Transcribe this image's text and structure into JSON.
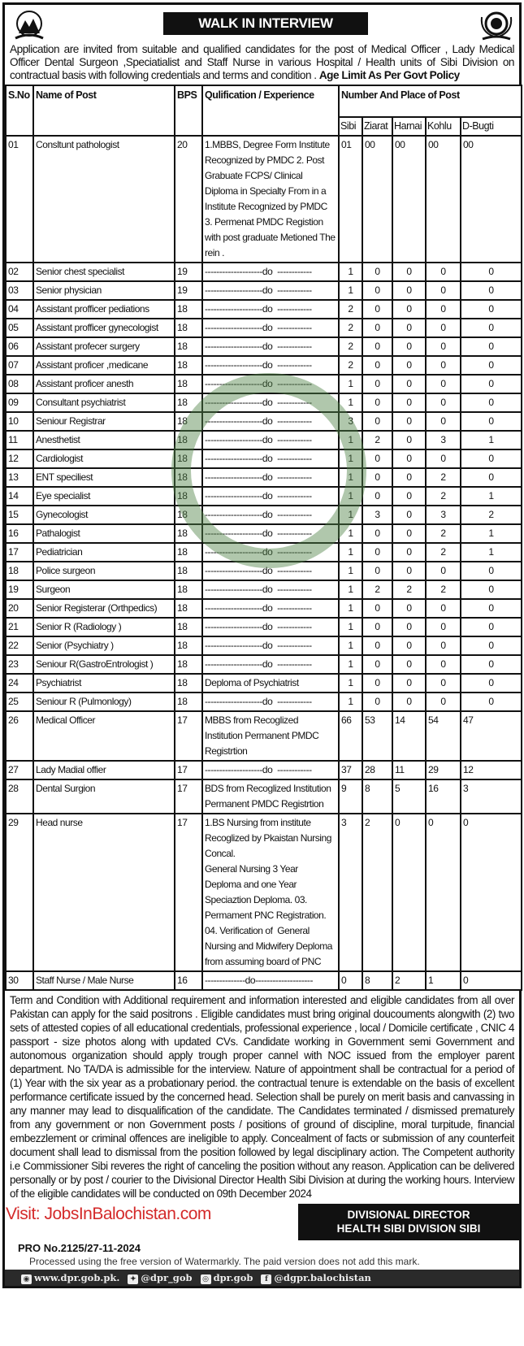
{
  "title": "WALK IN INTERVIEW",
  "intro": "Application are invited from suitable and qualified candidates for the post of Medical Officer , Lady Medical Officer Dental Surgeon ,Speciatialist  and Staff Nurse in various  Hospital / Health units of  Sibi Division on contractual basis with following credentials and terms and condition .",
  "intro_bold": "Age Limit As Per Govt Policy",
  "table": {
    "headers": {
      "sno": "S.No",
      "name": "Name of Post",
      "bps": "BPS",
      "qual": "Qulification / Experience",
      "place": "Number And Place of Post"
    },
    "places": [
      "Sibi",
      "Ziarat",
      "Harnai",
      "Kohlu",
      "D-Bugti"
    ],
    "rows": [
      {
        "sno": "01",
        "name": "Consltunt  pathologist",
        "bps": "20",
        "qual": "1.MBBS, Degree Form Institute  Recognized by PMDC 2. Post Grabuate FCPS/ Clinical Diploma in Specialty From in a Institute Recognized by PMDC 3. Permenat PMDC Registion with post graduate Metioned The rein .",
        "counts": [
          "01",
          "00",
          "00",
          "00",
          "00"
        ]
      },
      {
        "sno": "02",
        "name": "Senior chest specialist",
        "bps": "19",
        "qual": "--------------------do  ------------",
        "counts": [
          "1",
          "0",
          "0",
          "0",
          "0"
        ]
      },
      {
        "sno": "03",
        "name": "Senior  physician",
        "bps": "19",
        "qual": "--------------------do  ------------",
        "counts": [
          "1",
          "0",
          "0",
          "0",
          "0"
        ]
      },
      {
        "sno": "04",
        "name": "Assistant  profficer  pediations",
        "bps": "18",
        "qual": "--------------------do  ------------",
        "counts": [
          "2",
          "0",
          "0",
          "0",
          "0"
        ]
      },
      {
        "sno": "05",
        "name": "Assistant  profficer gynecologist",
        "bps": "18",
        "qual": "--------------------do  ------------",
        "counts": [
          "2",
          "0",
          "0",
          "0",
          "0"
        ]
      },
      {
        "sno": "06",
        "name": "Assistant  profecer   surgery",
        "bps": "18",
        "qual": "--------------------do  ------------",
        "counts": [
          "2",
          "0",
          "0",
          "0",
          "0"
        ]
      },
      {
        "sno": "07",
        "name": "Assistant  proficer  ,medicane",
        "bps": "18",
        "qual": "--------------------do  ------------",
        "counts": [
          "2",
          "0",
          "0",
          "0",
          "0"
        ]
      },
      {
        "sno": "08",
        "name": "Assistant  proficer anesth",
        "bps": "18",
        "qual": "--------------------do  ------------",
        "counts": [
          "1",
          "0",
          "0",
          "0",
          "0"
        ]
      },
      {
        "sno": "09",
        "name": "Consultant psychiatrist",
        "bps": "18",
        "qual": "--------------------do  ------------",
        "counts": [
          "1",
          "0",
          "0",
          "0",
          "0"
        ]
      },
      {
        "sno": "10",
        "name": "Seniour  Registrar",
        "bps": "18",
        "qual": "--------------------do  ------------",
        "counts": [
          "3",
          "0",
          "0",
          "0",
          "0"
        ]
      },
      {
        "sno": "11",
        "name": "Anesthetist",
        "bps": "18",
        "qual": "--------------------do  ------------",
        "counts": [
          "1",
          "2",
          "0",
          "3",
          "1"
        ]
      },
      {
        "sno": "12",
        "name": "Cardiologist",
        "bps": "18",
        "qual": "--------------------do  ------------",
        "counts": [
          "1",
          "0",
          "0",
          "0",
          "0"
        ]
      },
      {
        "sno": "13",
        "name": "ENT speciliest",
        "bps": "18",
        "qual": "--------------------do  ------------",
        "counts": [
          "1",
          "0",
          "0",
          "2",
          "0"
        ]
      },
      {
        "sno": "14",
        "name": "Eye specialist",
        "bps": "18",
        "qual": "--------------------do  ------------",
        "counts": [
          "1",
          "0",
          "0",
          "2",
          "1"
        ]
      },
      {
        "sno": "15",
        "name": "Gynecologist",
        "bps": "18",
        "qual": "--------------------do  ------------",
        "counts": [
          "1",
          "3",
          "0",
          "3",
          "2"
        ]
      },
      {
        "sno": "16",
        "name": "Pathalogist",
        "bps": "18",
        "qual": "--------------------do  ------------",
        "counts": [
          "1",
          "0",
          "0",
          "2",
          "1"
        ]
      },
      {
        "sno": "17",
        "name": "Pediatrician",
        "bps": "18",
        "qual": "--------------------do  ------------",
        "counts": [
          "1",
          "0",
          "0",
          "2",
          "1"
        ]
      },
      {
        "sno": "18",
        "name": "Police  surgeon",
        "bps": "18",
        "qual": "--------------------do  ------------",
        "counts": [
          "1",
          "0",
          "0",
          "0",
          "0"
        ]
      },
      {
        "sno": "19",
        "name": "Surgeon",
        "bps": "18",
        "qual": "--------------------do  ------------",
        "counts": [
          "1",
          "2",
          "2",
          "2",
          "0"
        ]
      },
      {
        "sno": "20",
        "name": "Senior  Registerar (Orthpedics)",
        "bps": "18",
        "qual": "--------------------do  ------------",
        "counts": [
          "1",
          "0",
          "0",
          "0",
          "0"
        ]
      },
      {
        "sno": "21",
        "name": "Senior R (Radiology )",
        "bps": "18",
        "qual": "--------------------do  ------------",
        "counts": [
          "1",
          "0",
          "0",
          "0",
          "0"
        ]
      },
      {
        "sno": "22",
        "name": "Senior (Psychiatry )",
        "bps": "18",
        "qual": "--------------------do  ------------",
        "counts": [
          "1",
          "0",
          "0",
          "0",
          "0"
        ]
      },
      {
        "sno": "23",
        "name": "Seniour R(GastroEntrologist )",
        "bps": "18",
        "qual": "--------------------do  ------------",
        "counts": [
          "1",
          "0",
          "0",
          "0",
          "0"
        ]
      },
      {
        "sno": "24",
        "name": "Psychiatrist",
        "bps": "18",
        "qual": "Deploma of Psychiatrist",
        "counts": [
          "1",
          "0",
          "0",
          "0",
          "0"
        ]
      },
      {
        "sno": "25",
        "name": "Seniour R (Pulmonlogy)",
        "bps": "18",
        "qual": "--------------------do  ------------",
        "counts": [
          "1",
          "0",
          "0",
          "0",
          "0"
        ]
      },
      {
        "sno": "26",
        "name": "Medical  Officer",
        "bps": "17",
        "qual": "MBBS from Recoglized Institution Permanent PMDC Registrtion",
        "counts": [
          "66",
          "53",
          "14",
          "54",
          "47"
        ]
      },
      {
        "sno": "27",
        "name": "Lady  Madial  offier",
        "bps": "17",
        "qual": "--------------------do  ------------",
        "counts": [
          "37",
          "28",
          "11",
          "29",
          "12"
        ]
      },
      {
        "sno": "28",
        "name": "Dental  Surgion",
        "bps": "17",
        "qual": "BDS from Recoglized Institution Permanent PMDC Registrtion",
        "counts": [
          "9",
          "8",
          "5",
          "16",
          "3"
        ]
      },
      {
        "sno": "29",
        "name": "Head  nurse",
        "bps": "17",
        "qual": "1.BS Nursing from institute Recoglized by Pkaistan Nursing Concal.\nGeneral Nursing 3 Year Deploma and one Year Speciaztion Deploma. 03. Permament PNC Registration. 04. Verification of  General Nursing and Midwifery Deploma from assuming board of PNC",
        "counts": [
          "3",
          "2",
          "0",
          "0",
          "0"
        ]
      },
      {
        "sno": "30",
        "name": "Staff Nurse / Male Nurse",
        "bps": "16",
        "qual": "--------------do--------------------",
        "counts": [
          "0",
          "8",
          "2",
          "1",
          "0"
        ]
      }
    ]
  },
  "watermark": "JOBSINBALOCHISTAN",
  "terms": "Term and Condition with Additional requirement and information interested and eligible candidates from all over Pakistan can apply for the said positrons . Eligible candidates must bring original doucouments alongwith (2) two sets of attested copies of all educational credentials, professional experience , local / Domicile  certificate , CNIC  4 passport - size photos along with updated CVs. Candidate working in Government semi Government and autonomous organization should apply trough proper cannel with NOC issued from the employer parent department.  No TA/DA is admissible for the interview. Nature of appointment shall be contractual for a period of (1) Year with the six year as a probationary period. the contractual tenure  is extendable on the basis of excellent performance certificate issued by the concerned head. Selection shall be purely on merit basis and canvassing in any manner may lead to disqualification of the candidate. The Candidates  terminated / dismissed prematurely from any government or non Government posts / positions of ground of discipline, moral turpitude, financial embezzlement or criminal offences are ineligible to apply. Concealment of facts or submission of any counterfeit document shall lead to dismissal from the position followed by legal disciplinary action. The Competent authority i.e Commissioner Sibi reveres the right of canceling the position without any reason. Application can be delivered personally or by post / courier to the Divisional Director Health  Sibi Division at during the working hours. Interview of the eligible candidates will be conducted on 09th December 2024",
  "visit": "Visit: JobsInBalochistan.com",
  "director": {
    "line1": "DIVISIONAL DIRECTOR",
    "line2": "HEALTH SIBI DIVISION SIBI"
  },
  "pro": "PRO No.2125/27-11-2024",
  "processed": "Processed using the free version of Watermarkly. The paid version does not add this mark.",
  "footer": {
    "web": "www.dpr.gob.pk.",
    "twitter": "@dpr_gob",
    "instagram": "dpr.gob",
    "facebook": "@dgpr.balochistan"
  },
  "colors": {
    "visit": "#d42a2a",
    "watermark": "#508246",
    "banner": "#111111"
  }
}
